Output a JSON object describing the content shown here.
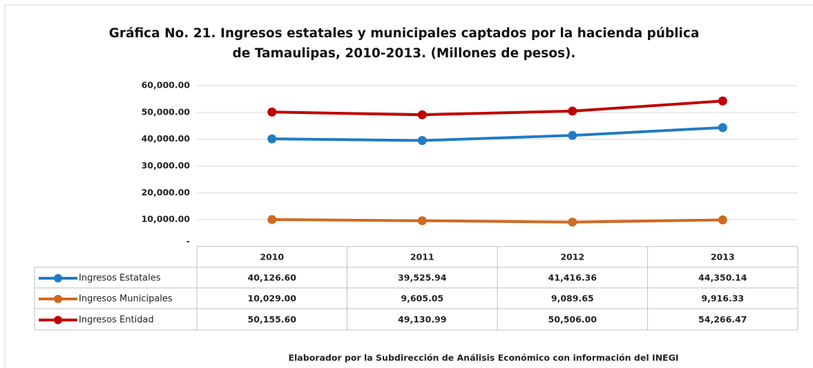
{
  "chart_data": {
    "type": "line",
    "title": "Gráfica No. 21. Ingresos estatales y municipales captados por la hacienda pública de Tamaulipas, 2010-2013. (Millones de pesos).",
    "categories": [
      "2010",
      "2011",
      "2012",
      "2013"
    ],
    "series": [
      {
        "name": "Ingresos Estatales",
        "color": "#1f7bc4",
        "values": [
          40126.6,
          39525.94,
          41416.36,
          44350.14
        ],
        "value_labels": [
          "40,126.60",
          "39,525.94",
          "41,416.36",
          "44,350.14"
        ]
      },
      {
        "name": "Ingresos Municipales",
        "color": "#d06a22",
        "values": [
          10029.0,
          9605.05,
          9089.65,
          9916.33
        ],
        "value_labels": [
          "10,029.00",
          "9,605.05",
          "9,089.65",
          "9,916.33"
        ]
      },
      {
        "name": "Ingresos Entidad",
        "color": "#c00000",
        "values": [
          50155.6,
          49130.99,
          50506.0,
          54266.47
        ],
        "value_labels": [
          "50,155.60",
          "49,130.99",
          "50,506.00",
          "54,266.47"
        ]
      }
    ],
    "ylim": [
      0,
      60000
    ],
    "yticks": [
      {
        "value": 0,
        "label": "-"
      },
      {
        "value": 10000,
        "label": "10,000.00"
      },
      {
        "value": 20000,
        "label": "20,000.00"
      },
      {
        "value": 30000,
        "label": "30,000.00"
      },
      {
        "value": 40000,
        "label": "40,000.00"
      },
      {
        "value": 50000,
        "label": "50,000.00"
      },
      {
        "value": 60000,
        "label": "60,000.00"
      }
    ],
    "grid": true,
    "source": "Elaborador por la Subdirección de Análisis Económico con información del INEGI"
  }
}
